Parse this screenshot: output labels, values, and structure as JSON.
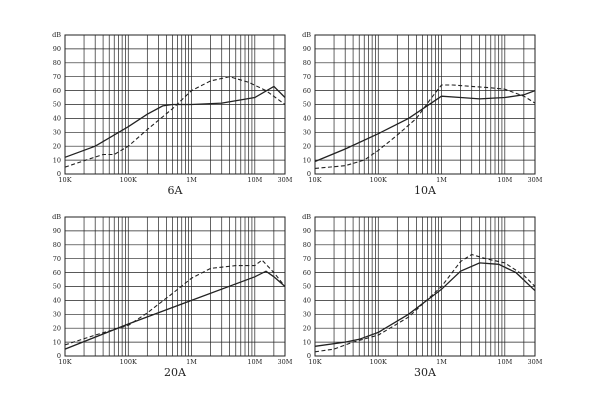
{
  "chart_data": [
    {
      "type": "line",
      "title": "6A",
      "ylabel": "dB",
      "xscale": "log",
      "xlim": [
        10000,
        30000000
      ],
      "ylim": [
        0,
        100
      ],
      "x_tick_labels": [
        "10K",
        "100K",
        "1M",
        "10M",
        "30M"
      ],
      "y_tick_labels": [
        "0",
        "10",
        "20",
        "30",
        "40",
        "50",
        "60",
        "70",
        "80",
        "90"
      ],
      "series": [
        {
          "name": "solid",
          "style": "solid",
          "x": [
            10000,
            30000,
            100000,
            200000,
            350000,
            500000,
            1000000,
            3000000,
            10000000,
            20000000,
            30000000
          ],
          "y": [
            12,
            20,
            34,
            43,
            49,
            50,
            50,
            51,
            55,
            63,
            55
          ]
        },
        {
          "name": "dashed",
          "style": "dashed",
          "x": [
            10000,
            25000,
            40000,
            60000,
            100000,
            200000,
            500000,
            1000000,
            2000000,
            4000000,
            8000000,
            15000000,
            30000000
          ],
          "y": [
            5,
            11,
            14,
            14,
            20,
            32,
            47,
            60,
            67,
            70,
            66,
            60,
            50
          ]
        }
      ]
    },
    {
      "type": "line",
      "title": "10A",
      "ylabel": "dB",
      "xscale": "log",
      "xlim": [
        10000,
        30000000
      ],
      "ylim": [
        0,
        100
      ],
      "x_tick_labels": [
        "10K",
        "100K",
        "1M",
        "10M",
        "30M"
      ],
      "y_tick_labels": [
        "0",
        "10",
        "20",
        "30",
        "40",
        "50",
        "60",
        "70",
        "80",
        "90"
      ],
      "series": [
        {
          "name": "solid",
          "style": "solid",
          "x": [
            10000,
            30000,
            100000,
            300000,
            1000000,
            2000000,
            4000000,
            10000000,
            20000000,
            30000000
          ],
          "y": [
            9,
            18,
            29,
            40,
            56,
            55,
            54,
            55,
            57,
            60
          ]
        },
        {
          "name": "dashed",
          "style": "dashed",
          "x": [
            10000,
            30000,
            60000,
            100000,
            200000,
            400000,
            700000,
            1000000,
            1500000,
            3000000,
            6000000,
            10000000,
            20000000,
            30000000
          ],
          "y": [
            4,
            6,
            10,
            17,
            28,
            40,
            55,
            64,
            64,
            63,
            62,
            61,
            56,
            51
          ]
        }
      ]
    },
    {
      "type": "line",
      "title": "20A",
      "ylabel": "dB",
      "xscale": "log",
      "xlim": [
        10000,
        30000000
      ],
      "ylim": [
        0,
        100
      ],
      "x_tick_labels": [
        "10K",
        "100K",
        "1M",
        "10M",
        "30M"
      ],
      "y_tick_labels": [
        "0",
        "10",
        "20",
        "30",
        "40",
        "50",
        "60",
        "70",
        "80",
        "90"
      ],
      "series": [
        {
          "name": "solid",
          "style": "solid",
          "x": [
            10000,
            100000,
            1000000,
            10000000,
            15000000,
            20000000,
            30000000
          ],
          "y": [
            5,
            23,
            40,
            57,
            61,
            57,
            50
          ]
        },
        {
          "name": "dashed",
          "style": "dashed",
          "x": [
            10000,
            30000,
            100000,
            200000,
            500000,
            1000000,
            2000000,
            5000000,
            10000000,
            13000000,
            20000000,
            30000000
          ],
          "y": [
            8,
            15,
            22,
            31,
            45,
            56,
            63,
            65,
            65,
            69,
            60,
            50
          ]
        }
      ]
    },
    {
      "type": "line",
      "title": "30A",
      "ylabel": "dB",
      "xscale": "log",
      "xlim": [
        10000,
        30000000
      ],
      "ylim": [
        0,
        100
      ],
      "x_tick_labels": [
        "10K",
        "100K",
        "1M",
        "10M",
        "30M"
      ],
      "y_tick_labels": [
        "0",
        "10",
        "20",
        "30",
        "40",
        "50",
        "60",
        "70",
        "80",
        "90"
      ],
      "series": [
        {
          "name": "solid",
          "style": "solid",
          "x": [
            10000,
            30000,
            50000,
            100000,
            300000,
            1000000,
            2000000,
            4000000,
            8000000,
            15000000,
            30000000
          ],
          "y": [
            7,
            10,
            12,
            17,
            30,
            48,
            61,
            67,
            66,
            60,
            47
          ]
        },
        {
          "name": "dashed",
          "style": "dashed",
          "x": [
            10000,
            20000,
            40000,
            100000,
            300000,
            1000000,
            2000000,
            3000000,
            5000000,
            10000000,
            20000000,
            30000000
          ],
          "y": [
            3,
            5,
            10,
            15,
            28,
            50,
            68,
            73,
            70,
            67,
            58,
            50
          ]
        }
      ]
    }
  ]
}
